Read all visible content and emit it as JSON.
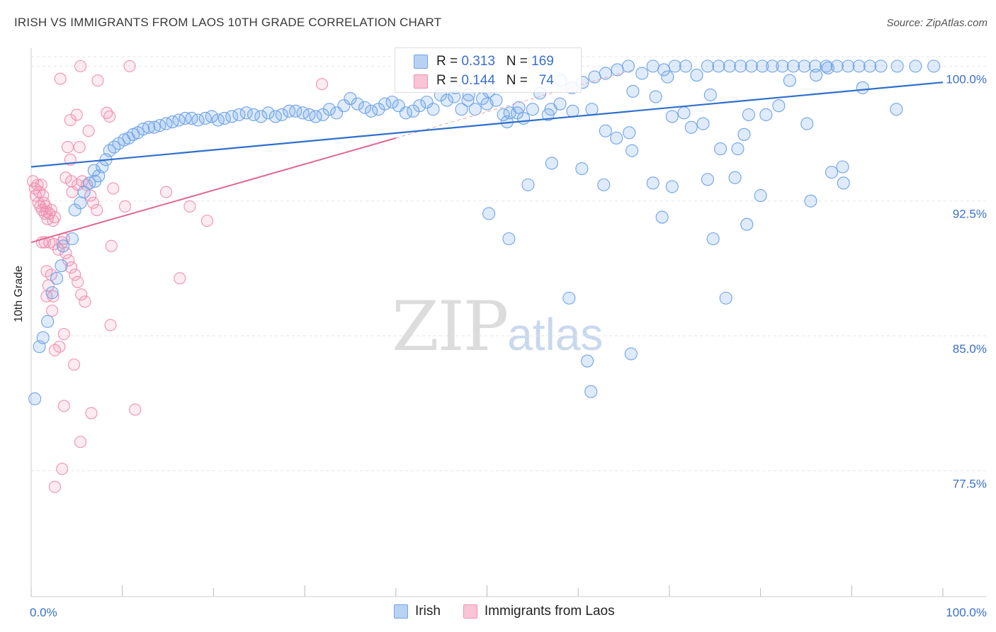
{
  "header": {
    "title": "IRISH VS IMMIGRANTS FROM LAOS 10TH GRADE CORRELATION CHART",
    "source": "Source: ZipAtlas.com"
  },
  "legend": {
    "irish": {
      "r_label": "R =",
      "r_value": "0.313",
      "n_label": "N =",
      "n_value": "169",
      "color": "#6fa3e6"
    },
    "laos": {
      "r_label": "R =",
      "r_value": "0.144",
      "n_label": "N =",
      "n_value": "74",
      "color": "#f090b0"
    }
  },
  "bottom_legend": {
    "irish": "Irish",
    "laos": "Immigrants from Laos"
  },
  "watermark": {
    "zip": "ZIP",
    "atlas": "atlas"
  },
  "chart_data": {
    "type": "scatter",
    "xlabel": "",
    "ylabel": "10th Grade",
    "xlim": [
      0,
      100
    ],
    "ylim": [
      70.5,
      101
    ],
    "x_tick_labels": [
      "0.0%",
      "100.0%"
    ],
    "y_ticks": [
      77.5,
      85.0,
      92.5,
      100.0
    ],
    "y_tick_labels": [
      "77.5%",
      "85.0%",
      "92.5%",
      "100.0%"
    ],
    "grid": true,
    "series": [
      {
        "name": "Irish",
        "color": "#6fa3e6",
        "trend": {
          "x": [
            0,
            100
          ],
          "y": [
            94.4,
            99.1
          ]
        },
        "points": [
          [
            0.4,
            81.5
          ],
          [
            0.9,
            84.4
          ],
          [
            1.3,
            84.9
          ],
          [
            1.8,
            85.8
          ],
          [
            2.3,
            87.4
          ],
          [
            2.8,
            88.2
          ],
          [
            3.3,
            88.9
          ],
          [
            3.5,
            90.0
          ],
          [
            4.5,
            90.4
          ],
          [
            4.8,
            92.0
          ],
          [
            5.4,
            92.4
          ],
          [
            5.8,
            93.0
          ],
          [
            6.4,
            93.5
          ],
          [
            7.0,
            93.6
          ],
          [
            7.4,
            93.9
          ],
          [
            6.9,
            94.2
          ],
          [
            7.8,
            94.4
          ],
          [
            8.2,
            94.8
          ],
          [
            8.6,
            95.3
          ],
          [
            9.1,
            95.5
          ],
          [
            9.6,
            95.7
          ],
          [
            10.2,
            95.9
          ],
          [
            10.7,
            96.0
          ],
          [
            11.2,
            96.2
          ],
          [
            11.7,
            96.3
          ],
          [
            12.3,
            96.5
          ],
          [
            12.9,
            96.6
          ],
          [
            13.5,
            96.6
          ],
          [
            14.1,
            96.7
          ],
          [
            14.8,
            96.8
          ],
          [
            15.5,
            96.9
          ],
          [
            16.2,
            97.0
          ],
          [
            16.9,
            97.1
          ],
          [
            17.6,
            97.1
          ],
          [
            18.3,
            97.0
          ],
          [
            19.1,
            97.1
          ],
          [
            19.8,
            97.2
          ],
          [
            20.5,
            97.0
          ],
          [
            21.2,
            97.1
          ],
          [
            22.0,
            97.2
          ],
          [
            22.8,
            97.3
          ],
          [
            23.6,
            97.4
          ],
          [
            24.4,
            97.3
          ],
          [
            25.2,
            97.2
          ],
          [
            26.0,
            97.4
          ],
          [
            26.8,
            97.2
          ],
          [
            27.5,
            97.3
          ],
          [
            28.3,
            97.5
          ],
          [
            29.0,
            97.5
          ],
          [
            29.8,
            97.4
          ],
          [
            30.5,
            97.3
          ],
          [
            31.2,
            97.2
          ],
          [
            32.0,
            97.3
          ],
          [
            32.7,
            97.6
          ],
          [
            33.5,
            97.4
          ],
          [
            34.3,
            97.8
          ],
          [
            35.0,
            98.2
          ],
          [
            35.8,
            97.9
          ],
          [
            36.6,
            97.7
          ],
          [
            37.3,
            97.5
          ],
          [
            38.1,
            97.6
          ],
          [
            38.8,
            97.9
          ],
          [
            39.6,
            98.0
          ],
          [
            40.3,
            97.8
          ],
          [
            41.1,
            97.4
          ],
          [
            41.9,
            97.5
          ],
          [
            42.6,
            97.8
          ],
          [
            43.4,
            98.0
          ],
          [
            44.1,
            97.6
          ],
          [
            44.9,
            98.4
          ],
          [
            45.6,
            98.1
          ],
          [
            46.4,
            98.3
          ],
          [
            47.2,
            97.6
          ],
          [
            47.9,
            98.1
          ],
          [
            48.7,
            97.6
          ],
          [
            49.5,
            98.2
          ],
          [
            50.2,
            98.6
          ],
          [
            51.0,
            98.1
          ],
          [
            51.8,
            97.3
          ],
          [
            52.5,
            97.4
          ],
          [
            53.3,
            97.4
          ],
          [
            54.0,
            97.1
          ],
          [
            55.0,
            97.6
          ],
          [
            55.8,
            98.5
          ],
          [
            57.0,
            97.6
          ],
          [
            58.1,
            99.2
          ],
          [
            59.3,
            98.8
          ],
          [
            60.5,
            99.1
          ],
          [
            61.8,
            99.4
          ],
          [
            63.0,
            99.6
          ],
          [
            64.3,
            99.8
          ],
          [
            65.5,
            100.0
          ],
          [
            67.0,
            99.6
          ],
          [
            68.2,
            100.0
          ],
          [
            69.4,
            99.8
          ],
          [
            70.6,
            100.0
          ],
          [
            71.8,
            100.0
          ],
          [
            73.0,
            99.5
          ],
          [
            74.2,
            100.0
          ],
          [
            75.4,
            100.0
          ],
          [
            76.6,
            100.0
          ],
          [
            77.8,
            100.0
          ],
          [
            79.0,
            100.0
          ],
          [
            80.2,
            100.0
          ],
          [
            81.3,
            100.0
          ],
          [
            82.4,
            100.0
          ],
          [
            83.6,
            100.0
          ],
          [
            84.8,
            100.0
          ],
          [
            86.0,
            100.0
          ],
          [
            87.2,
            100.0
          ],
          [
            88.4,
            100.0
          ],
          [
            89.6,
            100.0
          ],
          [
            90.8,
            100.0
          ],
          [
            92.0,
            100.0
          ],
          [
            93.2,
            100.0
          ],
          [
            95.0,
            100.0
          ],
          [
            97.0,
            100.0
          ],
          [
            99.0,
            100.0
          ],
          [
            46.5,
            98.8
          ],
          [
            48.0,
            98.4
          ],
          [
            50.0,
            97.9
          ],
          [
            52.2,
            96.9
          ],
          [
            53.5,
            97.7
          ],
          [
            58.0,
            97.9
          ],
          [
            59.4,
            97.5
          ],
          [
            61.5,
            97.6
          ],
          [
            63.0,
            96.4
          ],
          [
            64.2,
            96.0
          ],
          [
            65.6,
            96.3
          ],
          [
            66.0,
            98.6
          ],
          [
            68.5,
            98.3
          ],
          [
            69.8,
            99.4
          ],
          [
            71.6,
            97.4
          ],
          [
            72.4,
            96.6
          ],
          [
            73.7,
            96.8
          ],
          [
            75.6,
            95.4
          ],
          [
            77.5,
            95.4
          ],
          [
            78.2,
            96.2
          ],
          [
            78.7,
            97.3
          ],
          [
            80.6,
            97.3
          ],
          [
            82.0,
            97.8
          ],
          [
            83.2,
            99.2
          ],
          [
            74.5,
            98.4
          ],
          [
            70.3,
            97.2
          ],
          [
            56.7,
            97.3
          ],
          [
            57.1,
            94.6
          ],
          [
            60.4,
            94.3
          ],
          [
            62.8,
            93.4
          ],
          [
            65.9,
            95.3
          ],
          [
            68.2,
            93.5
          ],
          [
            70.3,
            93.3
          ],
          [
            74.2,
            93.7
          ],
          [
            77.2,
            93.8
          ],
          [
            80.0,
            92.8
          ],
          [
            85.5,
            92.5
          ],
          [
            89.1,
            93.5
          ],
          [
            94.9,
            97.6
          ],
          [
            87.8,
            94.1
          ],
          [
            89.0,
            94.4
          ],
          [
            85.1,
            96.8
          ],
          [
            86.1,
            99.5
          ],
          [
            87.4,
            99.9
          ],
          [
            91.2,
            98.8
          ],
          [
            54.5,
            93.4
          ],
          [
            50.2,
            91.8
          ],
          [
            52.4,
            90.4
          ],
          [
            69.2,
            91.6
          ],
          [
            74.8,
            90.4
          ],
          [
            78.5,
            91.2
          ],
          [
            59.0,
            87.1
          ],
          [
            76.2,
            87.1
          ],
          [
            61.0,
            83.6
          ],
          [
            65.8,
            84.0
          ],
          [
            61.4,
            81.9
          ]
        ]
      },
      {
        "name": "Immigrants from Laos",
        "color": "#f090b0",
        "trend": {
          "x": [
            0,
            40
          ],
          "y": [
            90.2,
            96.0
          ]
        },
        "trend_dashed": {
          "x": [
            40,
            66
          ],
          "y": [
            96.0,
            99.8
          ]
        },
        "points": [
          [
            0.2,
            93.6
          ],
          [
            0.4,
            93.2
          ],
          [
            0.5,
            92.8
          ],
          [
            0.7,
            93.4
          ],
          [
            0.8,
            92.4
          ],
          [
            0.9,
            93.0
          ],
          [
            1.0,
            92.2
          ],
          [
            1.1,
            93.4
          ],
          [
            1.2,
            92.0
          ],
          [
            1.3,
            92.8
          ],
          [
            1.4,
            92.4
          ],
          [
            1.5,
            91.8
          ],
          [
            1.6,
            92.2
          ],
          [
            1.7,
            91.9
          ],
          [
            1.8,
            91.5
          ],
          [
            2.0,
            91.8
          ],
          [
            2.2,
            92.0
          ],
          [
            2.4,
            91.4
          ],
          [
            2.6,
            91.6
          ],
          [
            3.0,
            89.8
          ],
          [
            3.4,
            90.2
          ],
          [
            3.6,
            90.4
          ],
          [
            3.8,
            89.6
          ],
          [
            4.1,
            89.2
          ],
          [
            4.4,
            88.8
          ],
          [
            4.8,
            88.4
          ],
          [
            5.1,
            88.0
          ],
          [
            5.5,
            87.3
          ],
          [
            5.9,
            86.9
          ],
          [
            1.2,
            90.2
          ],
          [
            1.5,
            90.2
          ],
          [
            2.0,
            90.2
          ],
          [
            2.5,
            90.1
          ],
          [
            1.7,
            88.6
          ],
          [
            2.2,
            88.4
          ],
          [
            1.9,
            87.8
          ],
          [
            2.4,
            87.2
          ],
          [
            1.7,
            87.2
          ],
          [
            2.3,
            86.4
          ],
          [
            3.1,
            84.4
          ],
          [
            3.6,
            85.1
          ],
          [
            2.6,
            84.2
          ],
          [
            4.7,
            83.4
          ],
          [
            3.6,
            81.1
          ],
          [
            6.6,
            80.7
          ],
          [
            5.4,
            79.1
          ],
          [
            3.4,
            77.6
          ],
          [
            2.6,
            76.6
          ],
          [
            11.4,
            80.9
          ],
          [
            3.2,
            99.3
          ],
          [
            5.4,
            100.0
          ],
          [
            7.3,
            99.2
          ],
          [
            10.8,
            100.0
          ],
          [
            5.0,
            97.3
          ],
          [
            4.3,
            97.0
          ],
          [
            8.3,
            97.4
          ],
          [
            8.6,
            97.2
          ],
          [
            6.3,
            96.4
          ],
          [
            4.0,
            95.5
          ],
          [
            5.3,
            95.5
          ],
          [
            4.3,
            94.8
          ],
          [
            3.8,
            93.8
          ],
          [
            4.4,
            93.6
          ],
          [
            4.5,
            93.0
          ],
          [
            5.1,
            93.4
          ],
          [
            5.6,
            93.6
          ],
          [
            6.1,
            93.4
          ],
          [
            6.5,
            92.8
          ],
          [
            6.8,
            92.4
          ],
          [
            7.2,
            92.0
          ],
          [
            9.0,
            93.2
          ],
          [
            10.3,
            92.2
          ],
          [
            14.8,
            93.0
          ],
          [
            17.4,
            92.2
          ],
          [
            19.3,
            91.4
          ],
          [
            8.8,
            90.0
          ],
          [
            16.3,
            88.2
          ],
          [
            8.7,
            85.6
          ],
          [
            31.9,
            99.0
          ]
        ]
      }
    ]
  }
}
